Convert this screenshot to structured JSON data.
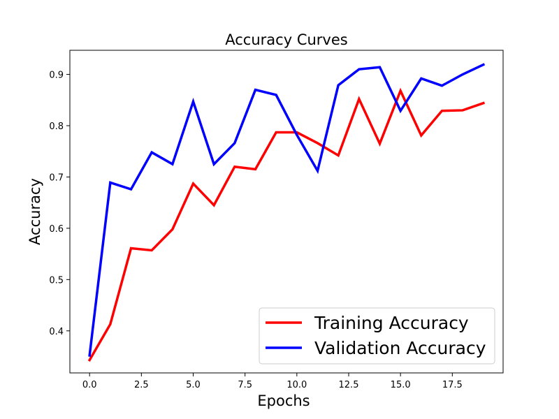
{
  "chart_data": {
    "type": "line",
    "title": "Accuracy Curves",
    "xlabel": "Epochs",
    "ylabel": "Accuracy",
    "xlim": [
      -0.95,
      19.95
    ],
    "ylim": [
      0.318,
      0.947
    ],
    "xticks": [
      0.0,
      2.5,
      5.0,
      7.5,
      10.0,
      12.5,
      15.0,
      17.5
    ],
    "xtick_labels": [
      "0.0",
      "2.5",
      "5.0",
      "7.5",
      "10.0",
      "12.5",
      "15.0",
      "17.5"
    ],
    "yticks": [
      0.4,
      0.5,
      0.6,
      0.7,
      0.8,
      0.9
    ],
    "ytick_labels": [
      "0.4",
      "0.5",
      "0.6",
      "0.7",
      "0.8",
      "0.9"
    ],
    "grid": false,
    "legend": "lower-right",
    "x": [
      0,
      1,
      2,
      3,
      4,
      5,
      6,
      7,
      8,
      9,
      10,
      11,
      12,
      13,
      14,
      15,
      16,
      17,
      18,
      19
    ],
    "series": [
      {
        "name": "Training Accuracy",
        "color": "#ff0000",
        "values": [
          0.343,
          0.413,
          0.561,
          0.557,
          0.598,
          0.687,
          0.645,
          0.72,
          0.715,
          0.787,
          0.787,
          0.766,
          0.742,
          0.852,
          0.765,
          0.868,
          0.781,
          0.829,
          0.83,
          0.844
        ]
      },
      {
        "name": "Validation Accuracy",
        "color": "#0000ff",
        "values": [
          0.352,
          0.689,
          0.676,
          0.748,
          0.725,
          0.847,
          0.725,
          0.766,
          0.87,
          0.86,
          0.782,
          0.712,
          0.879,
          0.91,
          0.914,
          0.829,
          0.892,
          0.878,
          0.9,
          0.919
        ]
      }
    ]
  }
}
